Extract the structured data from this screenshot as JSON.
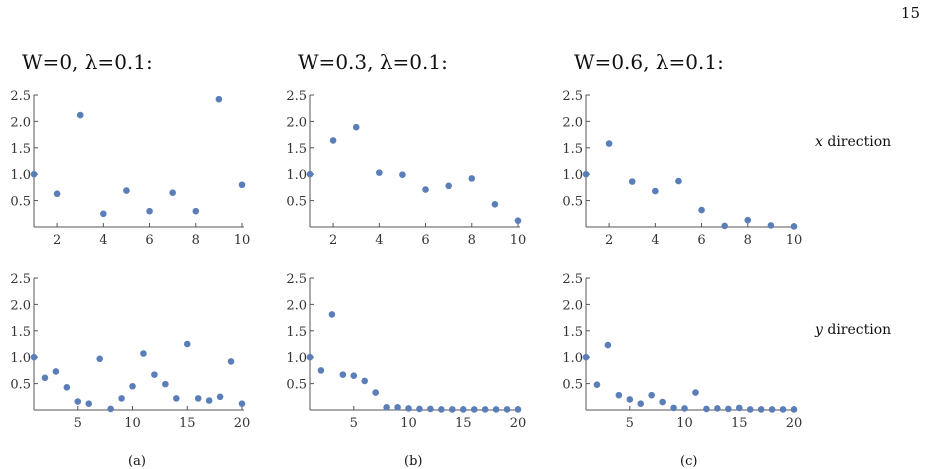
{
  "page_number": "15",
  "columns": [
    {
      "title": "W=0, λ=0.1:"
    },
    {
      "title": "W=0.3, λ=0.1:"
    },
    {
      "title": "W=0.6, λ=0.1:"
    }
  ],
  "rows": [
    {
      "label_var": "x",
      "label_text": " direction"
    },
    {
      "label_var": "y",
      "label_text": " direction"
    }
  ],
  "sub_labels": [
    "(a)",
    "(b)",
    "(c)"
  ],
  "chart_data": [
    {
      "type": "scatter",
      "x": [
        1,
        2,
        3,
        4,
        5,
        6,
        7,
        8,
        9,
        10
      ],
      "y": [
        1.0,
        0.63,
        2.12,
        0.25,
        0.69,
        0.3,
        0.65,
        0.3,
        2.42,
        0.8
      ],
      "xlim": [
        1,
        10
      ],
      "ylim": [
        0,
        2.5
      ],
      "xticks": [
        2,
        4,
        6,
        8,
        10
      ],
      "yticks": [
        0.5,
        1.0,
        1.5,
        2.0,
        2.5
      ],
      "xtick_labels": [
        "2",
        "4",
        "6",
        "8",
        "10"
      ],
      "ytick_labels": [
        "0.5",
        "1.0",
        "1.5",
        "2.0",
        "2.5"
      ]
    },
    {
      "type": "scatter",
      "x": [
        1,
        2,
        3,
        4,
        5,
        6,
        7,
        8,
        9,
        10
      ],
      "y": [
        1.0,
        1.64,
        1.89,
        1.03,
        0.99,
        0.71,
        0.78,
        0.92,
        0.43,
        0.12
      ],
      "xlim": [
        1,
        10
      ],
      "ylim": [
        0,
        2.5
      ],
      "xticks": [
        2,
        4,
        6,
        8,
        10
      ],
      "yticks": [
        0.5,
        1.0,
        1.5,
        2.0,
        2.5
      ],
      "xtick_labels": [
        "2",
        "4",
        "6",
        "8",
        "10"
      ],
      "ytick_labels": [
        "0.5",
        "1.0",
        "1.5",
        "2.0",
        "2.5"
      ]
    },
    {
      "type": "scatter",
      "x": [
        1,
        2,
        3,
        4,
        5,
        6,
        7,
        8,
        9,
        10
      ],
      "y": [
        1.0,
        1.58,
        0.86,
        0.68,
        0.87,
        0.32,
        0.02,
        0.13,
        0.03,
        0.01
      ],
      "xlim": [
        1,
        10
      ],
      "ylim": [
        0,
        2.5
      ],
      "xticks": [
        2,
        4,
        6,
        8,
        10
      ],
      "yticks": [
        0.5,
        1.0,
        1.5,
        2.0,
        2.5
      ],
      "xtick_labels": [
        "2",
        "4",
        "6",
        "8",
        "10"
      ],
      "ytick_labels": [
        "0.5",
        "1.0",
        "1.5",
        "2.0",
        "2.5"
      ]
    },
    {
      "type": "scatter",
      "x": [
        1,
        2,
        3,
        4,
        5,
        6,
        7,
        8,
        9,
        10,
        11,
        12,
        13,
        14,
        15,
        16,
        17,
        18,
        19,
        20
      ],
      "y": [
        1.0,
        0.61,
        0.73,
        0.43,
        0.16,
        0.12,
        0.97,
        0.02,
        0.22,
        0.45,
        1.07,
        0.67,
        0.49,
        0.22,
        1.25,
        0.22,
        0.18,
        0.25,
        0.92,
        0.12
      ],
      "xlim": [
        1,
        20
      ],
      "ylim": [
        0,
        2.5
      ],
      "xticks": [
        5,
        10,
        15,
        20
      ],
      "yticks": [
        0.5,
        1.0,
        1.5,
        2.0,
        2.5
      ],
      "xtick_labels": [
        "5",
        "10",
        "15",
        "20"
      ],
      "ytick_labels": [
        "0.5",
        "1.0",
        "1.5",
        "2.0",
        "2.5"
      ]
    },
    {
      "type": "scatter",
      "x": [
        1,
        2,
        3,
        4,
        5,
        6,
        7,
        8,
        9,
        10,
        11,
        12,
        13,
        14,
        15,
        16,
        17,
        18,
        19,
        20
      ],
      "y": [
        1.0,
        0.75,
        1.81,
        0.67,
        0.65,
        0.55,
        0.33,
        0.05,
        0.05,
        0.03,
        0.02,
        0.02,
        0.01,
        0.01,
        0.01,
        0.01,
        0.01,
        0.01,
        0.01,
        0.01
      ],
      "xlim": [
        1,
        20
      ],
      "ylim": [
        0,
        2.5
      ],
      "xticks": [
        5,
        10,
        15,
        20
      ],
      "yticks": [
        0.5,
        1.0,
        1.5,
        2.0,
        2.5
      ],
      "xtick_labels": [
        "5",
        "10",
        "15",
        "20"
      ],
      "ytick_labels": [
        "0.5",
        "1.0",
        "1.5",
        "2.0",
        "2.5"
      ]
    },
    {
      "type": "scatter",
      "x": [
        1,
        2,
        3,
        4,
        5,
        6,
        7,
        8,
        9,
        10,
        11,
        12,
        13,
        14,
        15,
        16,
        17,
        18,
        19,
        20
      ],
      "y": [
        1.0,
        0.48,
        1.23,
        0.28,
        0.2,
        0.12,
        0.28,
        0.15,
        0.04,
        0.03,
        0.33,
        0.02,
        0.03,
        0.02,
        0.04,
        0.01,
        0.01,
        0.01,
        0.01,
        0.01
      ],
      "xlim": [
        1,
        20
      ],
      "ylim": [
        0,
        2.5
      ],
      "xticks": [
        5,
        10,
        15,
        20
      ],
      "yticks": [
        0.5,
        1.0,
        1.5,
        2.0,
        2.5
      ],
      "xtick_labels": [
        "5",
        "10",
        "15",
        "20"
      ],
      "ytick_labels": [
        "0.5",
        "1.0",
        "1.5",
        "2.0",
        "2.5"
      ]
    }
  ]
}
